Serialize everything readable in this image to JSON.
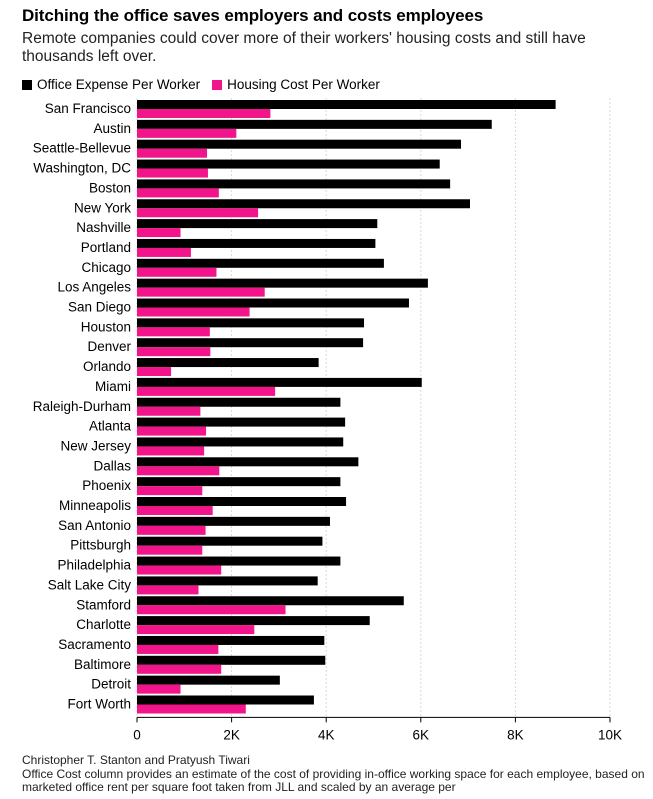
{
  "title": "Ditching the office saves employers and costs employees",
  "subtitle": "Remote companies could cover more of their workers' housing costs and still have thousands left over.",
  "footer": {
    "source": "Christopher T. Stanton and Pratyush Tiwari",
    "note": "Office Cost column provides an estimate of the cost of providing in-office working space for each employee, based on marketed office rent per square foot taken from JLL and scaled by an average per"
  },
  "colors": {
    "office": "#000000",
    "housing": "#f2148a"
  },
  "chart_data": {
    "type": "bar",
    "orientation": "horizontal",
    "categories": [
      "San Francisco",
      "Austin",
      "Seattle-Bellevue",
      "Washington, DC",
      "Boston",
      "New York",
      "Nashville",
      "Portland",
      "Chicago",
      "Los Angeles",
      "San Diego",
      "Houston",
      "Denver",
      "Orlando",
      "Miami",
      "Raleigh-Durham",
      "Atlanta",
      "New Jersey",
      "Dallas",
      "Phoenix",
      "Minneapolis",
      "San Antonio",
      "Pittsburgh",
      "Philadelphia",
      "Salt Lake City",
      "Stamford",
      "Charlotte",
      "Sacramento",
      "Baltimore",
      "Detroit",
      "Fort Worth"
    ],
    "series": [
      {
        "name": "Office Expense Per Worker",
        "color": "#000000",
        "values": [
          8850,
          7500,
          6850,
          6400,
          6620,
          7040,
          5080,
          5040,
          5220,
          6150,
          5750,
          4800,
          4780,
          3840,
          6020,
          4300,
          4400,
          4360,
          4680,
          4300,
          4420,
          4080,
          3920,
          4300,
          3820,
          5640,
          4920,
          3960,
          3980,
          3020,
          3740
        ]
      },
      {
        "name": "Housing Cost Per Worker",
        "color": "#f2148a",
        "values": [
          2820,
          2100,
          1480,
          1500,
          1730,
          2560,
          920,
          1140,
          1680,
          2700,
          2380,
          1540,
          1550,
          720,
          2920,
          1340,
          1460,
          1420,
          1740,
          1380,
          1600,
          1450,
          1380,
          1780,
          1300,
          3140,
          2480,
          1720,
          1780,
          920,
          2300
        ]
      }
    ],
    "xlim": [
      0,
      10000
    ],
    "xticks": [
      0,
      2000,
      4000,
      6000,
      8000,
      10000
    ],
    "xtick_labels": [
      "0",
      "2K",
      "4K",
      "6K",
      "8K",
      "10K"
    ],
    "xlabel": "",
    "ylabel": "",
    "grid": "vertical",
    "legend": "top-left"
  }
}
